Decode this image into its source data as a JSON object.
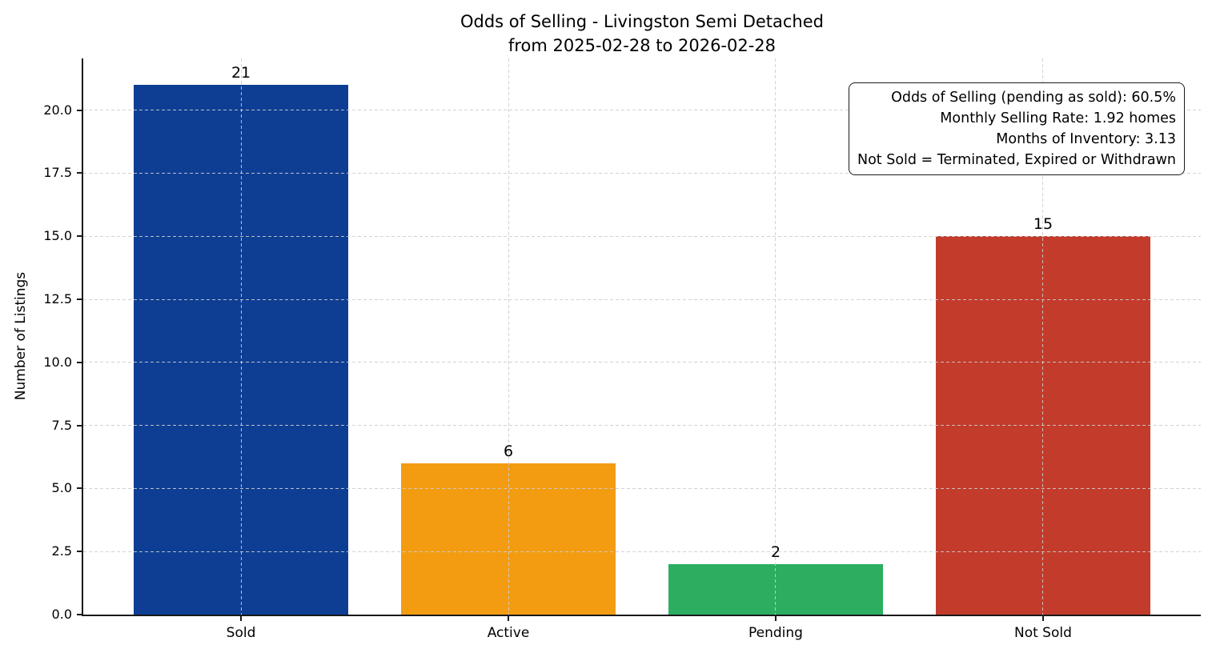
{
  "chart_data": {
    "type": "bar",
    "title": "Odds of Selling - Livingston Semi Detached",
    "subtitle": "from 2025-02-28 to 2026-02-28",
    "xlabel": "",
    "ylabel": "Number of Listings",
    "categories": [
      "Sold",
      "Active",
      "Pending",
      "Not Sold"
    ],
    "values": [
      21,
      6,
      2,
      15
    ],
    "value_labels": [
      "21",
      "6",
      "2",
      "15"
    ],
    "bar_colors": [
      "#0d3e94",
      "#f39c12",
      "#2bae60",
      "#c23b2b"
    ],
    "ylim": [
      0,
      22.05
    ],
    "ytick_labels": [
      "0.0",
      "2.5",
      "5.0",
      "7.5",
      "10.0",
      "12.5",
      "15.0",
      "17.5",
      "20.0"
    ],
    "grid": {
      "style": "dashed",
      "axes": "both",
      "color": "#cdcdcd"
    },
    "legend_position": "none",
    "annotation": {
      "position": "top-right",
      "text_align": "right",
      "lines": [
        "Odds of Selling (pending as sold): 60.5%",
        "Monthly Selling Rate: 1.92 homes",
        "Months of Inventory: 3.13",
        "Not Sold = Terminated, Expired or Withdrawn"
      ]
    }
  }
}
